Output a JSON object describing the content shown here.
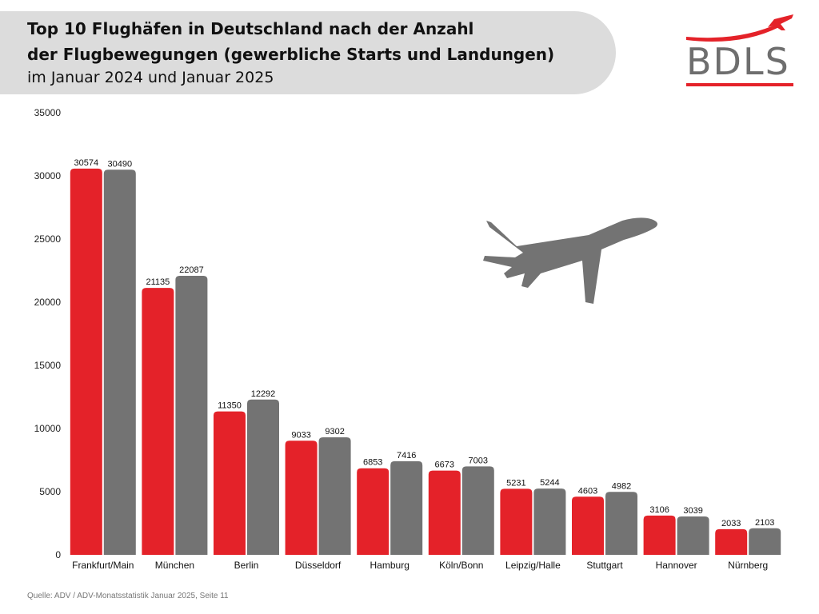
{
  "header": {
    "title_line1": "Top 10 Flughäfen in Deutschland nach der Anzahl",
    "title_line2": "der Flugbewegungen (gewerbliche Starts und Landungen)",
    "subtitle": "im Januar 2024 und Januar 2025"
  },
  "logo": {
    "text": "BDLS",
    "icon": "airplane-swoosh-logo"
  },
  "decoration": {
    "icon": "airplane-icon"
  },
  "colors": {
    "series_2024": "#e42229",
    "series_2025": "#737373",
    "header_bg": "#dcdcdc"
  },
  "source": "Quelle: ADV / ADV-Monatsstatistik Januar 2025, Seite 11",
  "chart_data": {
    "type": "bar",
    "categories": [
      "Frankfurt/Main",
      "München",
      "Berlin",
      "Düsseldorf",
      "Hamburg",
      "Köln/Bonn",
      "Leipzig/Halle",
      "Stuttgart",
      "Hannover",
      "Nürnberg"
    ],
    "series": [
      {
        "values": [
          30574,
          21135,
          11350,
          9033,
          6853,
          6673,
          5231,
          4603,
          3106,
          2033
        ],
        "color": "#e42229"
      },
      {
        "values": [
          30490,
          22087,
          12292,
          9302,
          7416,
          7003,
          5244,
          4982,
          3039,
          2103
        ],
        "color": "#737373"
      }
    ],
    "ylim": [
      0,
      35000
    ],
    "yticks": [
      0,
      5000,
      10000,
      15000,
      20000,
      25000,
      30000,
      35000
    ],
    "grid": false,
    "legend": "none",
    "data_labels": true
  }
}
